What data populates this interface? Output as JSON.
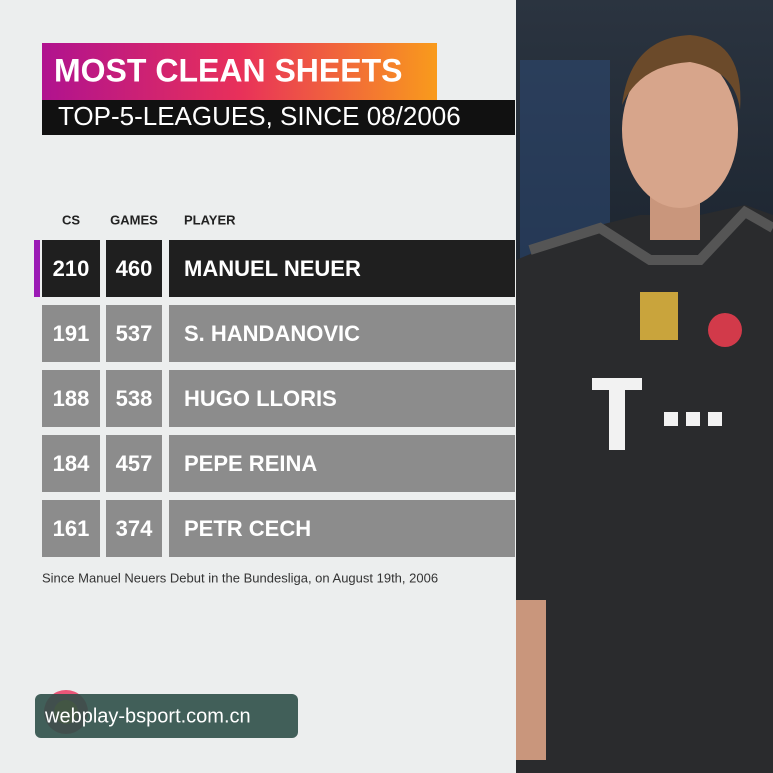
{
  "header": {
    "title": "MOST CLEAN SHEETS",
    "subtitle": "TOP-5-LEAGUES, SINCE 08/2006"
  },
  "table": {
    "columns": [
      "CS",
      "GAMES",
      "PLAYER"
    ],
    "rows": [
      [
        210,
        460,
        "MANUEL NEUER"
      ],
      [
        191,
        537,
        "S. HANDANOVIC"
      ],
      [
        188,
        538,
        "HUGO LLORIS"
      ],
      [
        184,
        457,
        "PEPE REINA"
      ],
      [
        161,
        374,
        "PETR CECH"
      ]
    ]
  },
  "footnote": "Since Manuel Neuers Debut in the Bundesliga, on August 19th, 2006",
  "watermark": "webplay-bsport.com.cn"
}
